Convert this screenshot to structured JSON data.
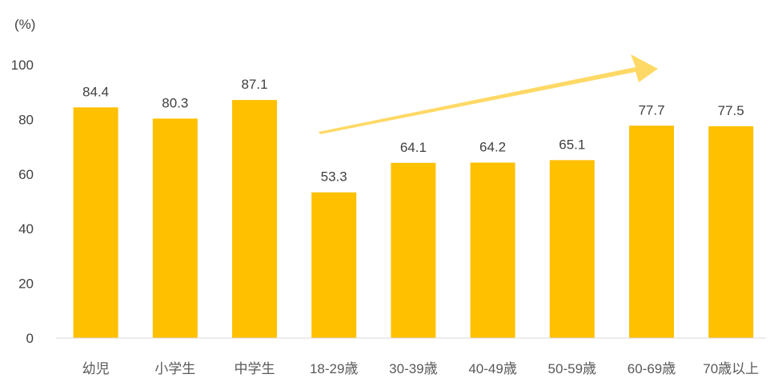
{
  "chart_data": {
    "type": "bar",
    "unit_label": "(%)",
    "categories": [
      "幼児",
      "小学生",
      "中学生",
      "18-29歳",
      "30-39歳",
      "40-49歳",
      "50-59歳",
      "60-69歳",
      "70歳以上"
    ],
    "values": [
      84.4,
      80.3,
      87.1,
      53.3,
      64.1,
      64.2,
      65.1,
      77.7,
      77.5
    ],
    "data_labels": [
      "84.4",
      "80.3",
      "87.1",
      "53.3",
      "64.1",
      "64.2",
      "65.1",
      "77.7",
      "77.5"
    ],
    "y_ticks": [
      "0",
      "20",
      "40",
      "60",
      "80",
      "100"
    ],
    "ylim": [
      0,
      100
    ],
    "grid": false,
    "legend": "none",
    "bar_color": "#FFC000",
    "arrow_color": "#FFD966",
    "annotation": "upward trend arrow spanning 18-29歳 to 60-69歳"
  }
}
